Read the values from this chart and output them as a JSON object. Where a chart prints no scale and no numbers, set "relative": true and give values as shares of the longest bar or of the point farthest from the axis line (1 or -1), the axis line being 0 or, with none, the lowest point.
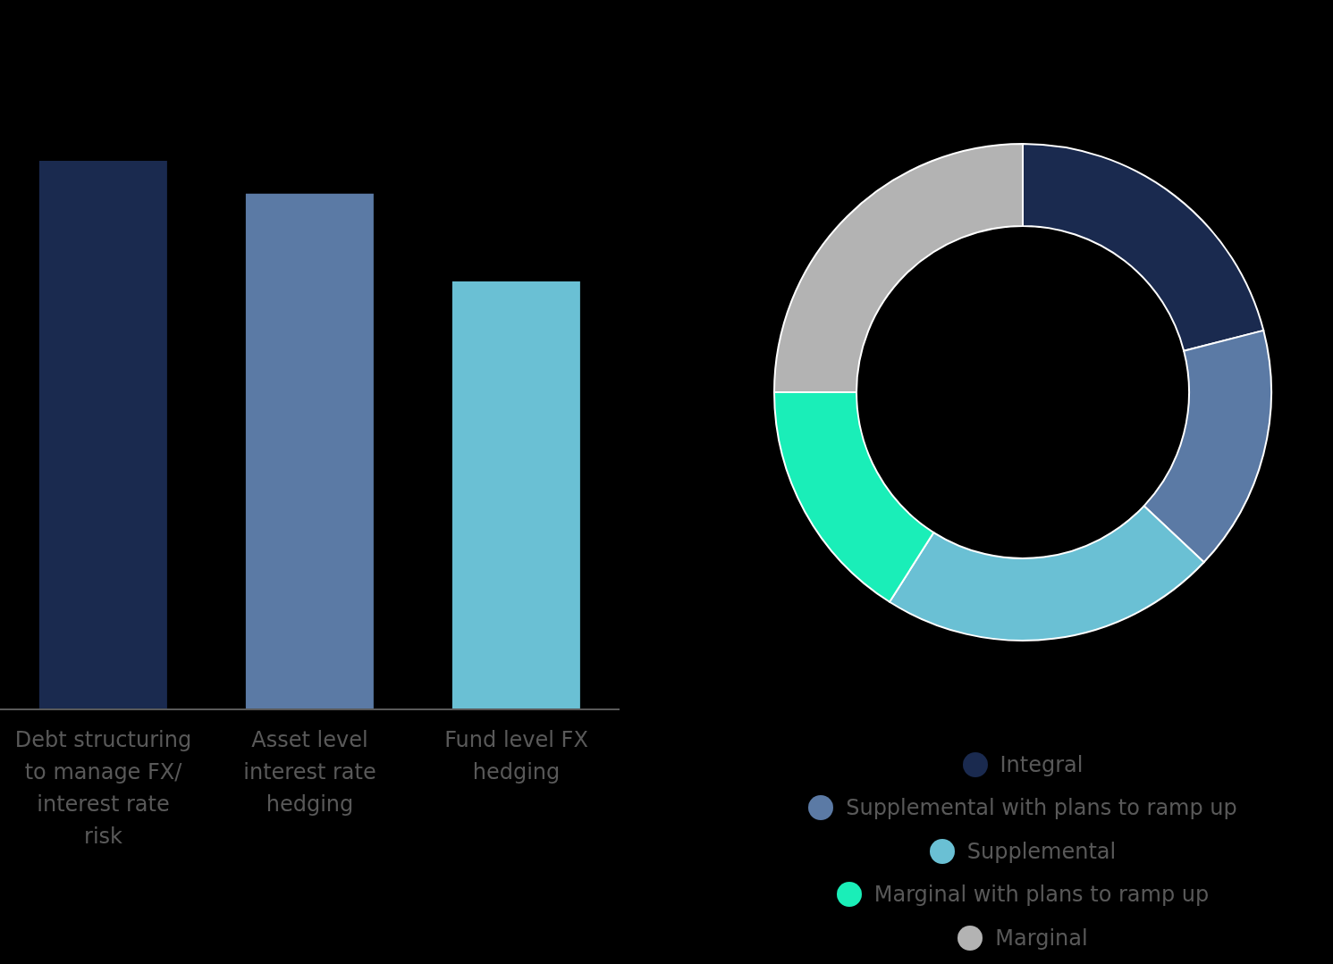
{
  "chart_data": [
    {
      "type": "bar",
      "relative": true,
      "categories": [
        "Debt structuring to manage FX/ interest rate risk",
        "Asset level interest rate hedging",
        "Fund level FX hedging"
      ],
      "values": [
        1,
        0.94,
        0.78
      ],
      "colors": [
        "#1a2a4f",
        "#5b7aa5",
        "#6ac0d4"
      ],
      "grid": false
    },
    {
      "type": "donut",
      "categories": [
        "Integral",
        "Supplemental with plans to ramp up",
        "Supplemental",
        "Marginal with plans to ramp up",
        "Marginal"
      ],
      "values": [
        21,
        16,
        22,
        16,
        25
      ],
      "colors": [
        "#1a2a4f",
        "#5b7aa5",
        "#6ac0d4",
        "#1aeeb8",
        "#b3b3b3"
      ],
      "legend": "bottom"
    }
  ]
}
